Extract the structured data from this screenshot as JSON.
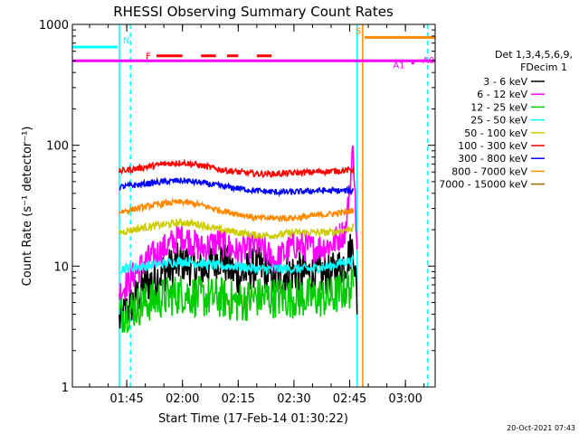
{
  "chart_data": {
    "type": "line",
    "title": "RHESSI Observing Summary Count Rates",
    "xlabel": "Start Time (17-Feb-14 01:30:22)",
    "ylabel": "Count Rate (s⁻¹ detector⁻¹)",
    "y_scale": "log",
    "ylim": [
      1,
      1000
    ],
    "y_ticks": [
      "1",
      "10",
      "100",
      "1000"
    ],
    "xlim": [
      "01:30:22",
      "03:08:00"
    ],
    "x_ticks": [
      "01:45",
      "02:00",
      "02:15",
      "02:30",
      "02:45",
      "03:00"
    ],
    "legend_title_1": "Det 1,3,4,5,6,9,",
    "legend_title_2": "FDecim 1",
    "legend_placement": "right",
    "footer_date": "20-Oct-2021 07:43",
    "series": [
      {
        "name": "3 - 6 keV",
        "color": "#000000",
        "x": [
          "01:43",
          "01:50",
          "01:55",
          "02:00",
          "02:05",
          "02:10",
          "02:15",
          "02:20",
          "02:25",
          "02:30",
          "02:35",
          "02:40",
          "02:44",
          "02:46",
          "02:47"
        ],
        "y": [
          3.5,
          7,
          9,
          11,
          9,
          12,
          8,
          10,
          8,
          9,
          8.5,
          8.5,
          11,
          15,
          5
        ]
      },
      {
        "name": "6 - 12 keV",
        "color": "#ff00ff",
        "x": [
          "01:43",
          "01:50",
          "01:55",
          "02:00",
          "02:05",
          "02:10",
          "02:15",
          "02:20",
          "02:25",
          "02:30",
          "02:35",
          "02:40",
          "02:44",
          "02:46",
          "02:47"
        ],
        "y": [
          6,
          11,
          14,
          18,
          14,
          16,
          13,
          15,
          11,
          15,
          14,
          15,
          20,
          100,
          12
        ]
      },
      {
        "name": "12 - 25 keV",
        "color": "#00cc00",
        "x": [
          "01:43",
          "01:50",
          "01:55",
          "02:00",
          "02:05",
          "02:10",
          "02:15",
          "02:20",
          "02:25",
          "02:30",
          "02:35",
          "02:40",
          "02:44",
          "02:46"
        ],
        "y": [
          4,
          5,
          5.5,
          6,
          5.5,
          5.5,
          5,
          5.5,
          5.5,
          5.5,
          5.5,
          5.5,
          6.5,
          6.5
        ]
      },
      {
        "name": "25 - 50 keV",
        "color": "#00ffff",
        "x": [
          "01:43",
          "01:50",
          "01:55",
          "02:00",
          "02:05",
          "02:10",
          "02:15",
          "02:20",
          "02:25",
          "02:30",
          "02:35",
          "02:40",
          "02:44",
          "02:46"
        ],
        "y": [
          9.5,
          10,
          10.5,
          11,
          10.5,
          10,
          10,
          9.5,
          9.5,
          9.5,
          9.5,
          10,
          11,
          11
        ]
      },
      {
        "name": "50 - 100 keV",
        "color": "#cccc00",
        "x": [
          "01:43",
          "01:50",
          "01:55",
          "02:00",
          "02:05",
          "02:10",
          "02:15",
          "02:20",
          "02:25",
          "02:30",
          "02:35",
          "02:40",
          "02:44",
          "02:46"
        ],
        "y": [
          19,
          21,
          22,
          23,
          22,
          20,
          19,
          18,
          18,
          19,
          19,
          19,
          20,
          21
        ]
      },
      {
        "name": "100 - 300 keV",
        "color": "#ff0000",
        "x": [
          "01:43",
          "01:50",
          "01:55",
          "02:00",
          "02:05",
          "02:10",
          "02:15",
          "02:20",
          "02:25",
          "02:30",
          "02:35",
          "02:40",
          "02:44",
          "02:46"
        ],
        "y": [
          61,
          66,
          70,
          72,
          68,
          63,
          60,
          58,
          58,
          59,
          60,
          61,
          62,
          63
        ]
      },
      {
        "name": "300 - 800 keV",
        "color": "#0000ff",
        "x": [
          "01:43",
          "01:50",
          "01:55",
          "02:00",
          "02:05",
          "02:10",
          "02:15",
          "02:20",
          "02:25",
          "02:30",
          "02:35",
          "02:40",
          "02:44",
          "02:46"
        ],
        "y": [
          45,
          48,
          50,
          51,
          49,
          46,
          44,
          42,
          41,
          41,
          42,
          42,
          42,
          42
        ]
      },
      {
        "name": "800 - 7000 keV",
        "color": "#ff8800",
        "x": [
          "01:43",
          "01:50",
          "01:55",
          "02:00",
          "02:05",
          "02:10",
          "02:15",
          "02:20",
          "02:25",
          "02:30",
          "02:35",
          "02:40",
          "02:44",
          "02:46"
        ],
        "y": [
          28,
          31,
          33,
          34,
          32,
          29,
          27,
          25,
          25,
          25,
          26,
          27,
          28,
          29
        ]
      },
      {
        "name": "7000 - 15000 keV",
        "color": "#996600",
        "x": [],
        "y": []
      }
    ],
    "flags": [
      {
        "label": "N",
        "color": "#00ffff",
        "x_start": "01:30:22",
        "x_end": "01:42:30",
        "level": 650
      },
      {
        "label": "F",
        "color": "#ff0000",
        "segments": [
          [
            "01:53",
            "02:00"
          ],
          [
            "02:05",
            "02:09"
          ],
          [
            "02:12",
            "02:15"
          ],
          [
            "02:20",
            "02:24"
          ]
        ],
        "level": 550
      },
      {
        "label": "S",
        "color": "#ff8800",
        "x_start": "02:49",
        "x_end": "03:08:00",
        "level": 780
      },
      {
        "label": "A1",
        "color": "#ff00ff",
        "x_start": "03:02",
        "x_end": "03:02",
        "level": 480
      },
      {
        "label": "A0",
        "color": "#ff00ff",
        "x_start": "01:30:22",
        "x_end": "03:08:00",
        "level": 500
      }
    ],
    "vlines": [
      {
        "x": "01:43",
        "color": "#00ffff",
        "style": "solid"
      },
      {
        "x": "01:46",
        "color": "#00ffff",
        "style": "dashed"
      },
      {
        "x": "02:47",
        "color": "#00ffff",
        "style": "solid"
      },
      {
        "x": "02:48:30",
        "color": "#ff8800",
        "style": "solid"
      },
      {
        "x": "03:06",
        "color": "#00ffff",
        "style": "dashed"
      }
    ]
  }
}
